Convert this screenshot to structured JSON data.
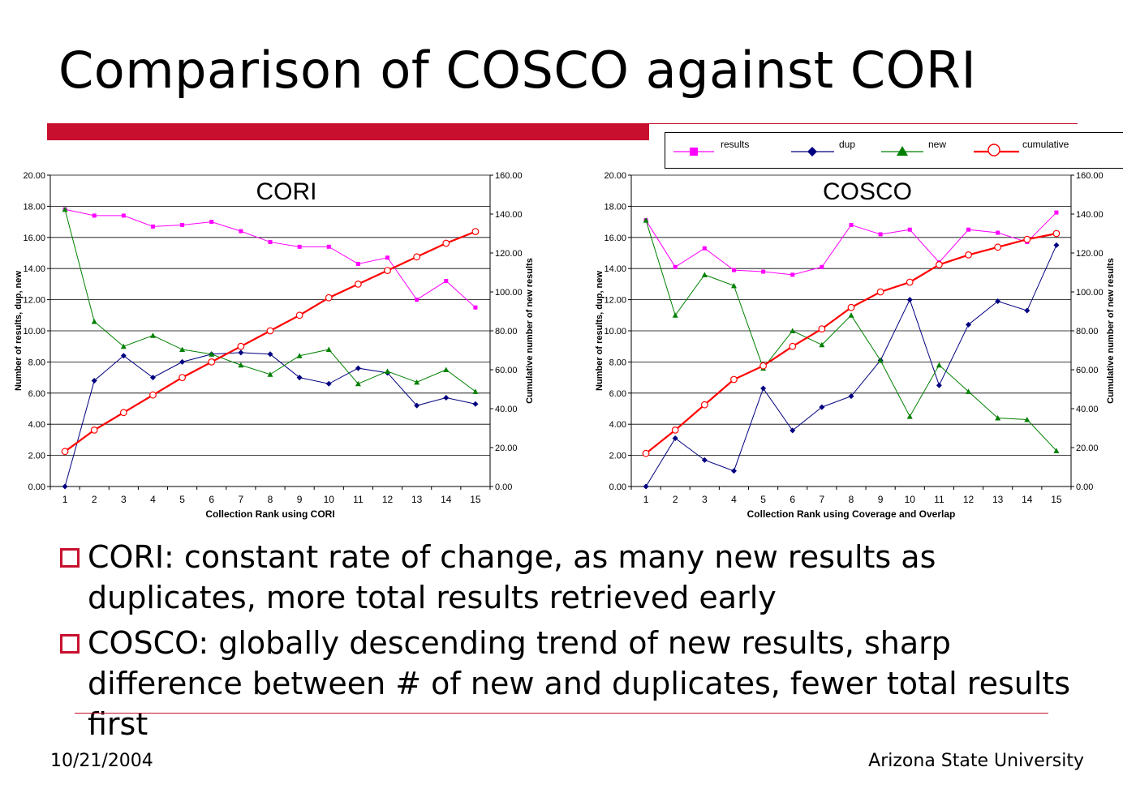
{
  "slide": {
    "title": "Comparison of COSCO against CORI",
    "bullets": [
      "CORI: constant rate of change, as many new results as duplicates, more total results retrieved early",
      "COSCO: globally descending trend of new results, sharp difference between # of new and duplicates, fewer total results first"
    ],
    "footer_date": "10/21/2004",
    "footer_org": "Arizona State University"
  },
  "legend": {
    "items": [
      {
        "label": "results",
        "color": "#ff00ff",
        "marker": "square"
      },
      {
        "label": "dup",
        "color": "#000080",
        "marker": "diamond"
      },
      {
        "label": "new",
        "color": "#008000",
        "marker": "triangle"
      },
      {
        "label": "cumulative",
        "color": "#ff0000",
        "marker": "circle"
      }
    ]
  },
  "chart_data": [
    {
      "type": "line",
      "title": "CORI",
      "xlabel": "Collection Rank using CORI",
      "ylabel": "Number of results, dup, new",
      "y2label": "Cumulative number of new results",
      "x": [
        1,
        2,
        3,
        4,
        5,
        6,
        7,
        8,
        9,
        10,
        11,
        12,
        13,
        14,
        15
      ],
      "ylim": [
        0,
        20
      ],
      "y2lim": [
        0,
        160
      ],
      "yticks": [
        "0.00",
        "2.00",
        "4.00",
        "6.00",
        "8.00",
        "10.00",
        "12.00",
        "14.00",
        "16.00",
        "18.00",
        "20.00"
      ],
      "y2ticks": [
        "0.00",
        "20.00",
        "40.00",
        "60.00",
        "80.00",
        "100.00",
        "120.00",
        "140.00",
        "160.00"
      ],
      "grid": true,
      "series": [
        {
          "name": "results",
          "axis": "left",
          "color": "#ff00ff",
          "marker": "square",
          "values": [
            17.8,
            17.4,
            17.4,
            16.7,
            16.8,
            17.0,
            16.4,
            15.7,
            15.4,
            15.4,
            14.3,
            14.7,
            12.0,
            13.2,
            11.5
          ]
        },
        {
          "name": "dup",
          "axis": "left",
          "color": "#000080",
          "marker": "diamond",
          "values": [
            0.0,
            6.8,
            8.4,
            7.0,
            8.0,
            8.5,
            8.6,
            8.5,
            7.0,
            6.6,
            7.6,
            7.3,
            5.2,
            5.7,
            5.3
          ]
        },
        {
          "name": "new",
          "axis": "left",
          "color": "#008000",
          "marker": "triangle",
          "values": [
            17.8,
            10.6,
            9.0,
            9.7,
            8.8,
            8.5,
            7.8,
            7.2,
            8.4,
            8.8,
            6.6,
            7.4,
            6.7,
            7.5,
            6.1
          ]
        },
        {
          "name": "cumulative",
          "axis": "right",
          "color": "#ff0000",
          "marker": "circle",
          "values": [
            18,
            29,
            38,
            47,
            56,
            64,
            72,
            80,
            88,
            97,
            104,
            111,
            118,
            125,
            131
          ]
        }
      ]
    },
    {
      "type": "line",
      "title": "COSCO",
      "xlabel": "Collection Rank using Coverage and Overlap",
      "ylabel": "Number of results, dup, new",
      "y2label": "Cumulative number of new results",
      "x": [
        1,
        2,
        3,
        4,
        5,
        6,
        7,
        8,
        9,
        10,
        11,
        12,
        13,
        14,
        15
      ],
      "ylim": [
        0,
        20
      ],
      "y2lim": [
        0,
        160
      ],
      "yticks": [
        "0.00",
        "2.00",
        "4.00",
        "6.00",
        "8.00",
        "10.00",
        "12.00",
        "14.00",
        "16.00",
        "18.00",
        "20.00"
      ],
      "y2ticks": [
        "0.00",
        "20.00",
        "40.00",
        "60.00",
        "80.00",
        "100.00",
        "120.00",
        "140.00",
        "160.00"
      ],
      "grid": true,
      "series": [
        {
          "name": "results",
          "axis": "left",
          "color": "#ff00ff",
          "marker": "square",
          "values": [
            17.1,
            14.1,
            15.3,
            13.9,
            13.8,
            13.6,
            14.1,
            16.8,
            16.2,
            16.5,
            14.4,
            16.5,
            16.3,
            15.7,
            17.6
          ]
        },
        {
          "name": "dup",
          "axis": "left",
          "color": "#000080",
          "marker": "diamond",
          "values": [
            0.0,
            3.1,
            1.7,
            1.0,
            6.3,
            3.6,
            5.1,
            5.8,
            8.1,
            12.0,
            6.5,
            10.4,
            11.9,
            11.3,
            15.5
          ]
        },
        {
          "name": "new",
          "axis": "left",
          "color": "#008000",
          "marker": "triangle",
          "values": [
            17.1,
            11.0,
            13.6,
            12.9,
            7.6,
            10.0,
            9.1,
            11.0,
            8.1,
            4.5,
            7.8,
            6.1,
            4.4,
            4.3,
            2.3
          ]
        },
        {
          "name": "cumulative",
          "axis": "right",
          "color": "#ff0000",
          "marker": "circle",
          "values": [
            17,
            29,
            42,
            55,
            62,
            72,
            81,
            92,
            100,
            105,
            114,
            119,
            123,
            127,
            130
          ]
        }
      ]
    }
  ]
}
